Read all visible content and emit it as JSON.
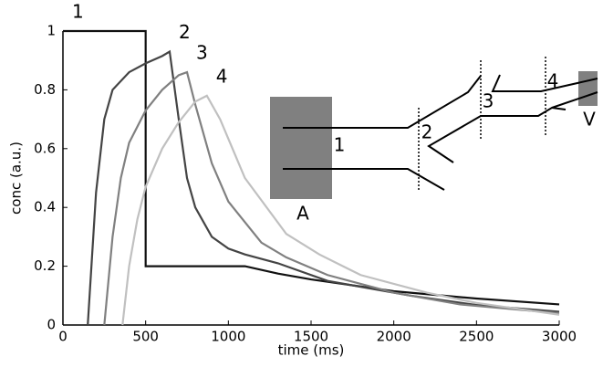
{
  "chart_data": {
    "type": "line",
    "xlabel": "time (ms)",
    "ylabel": "conc (a.u.)",
    "xlim": [
      0,
      3000
    ],
    "ylim": [
      0,
      1
    ],
    "xticks": [
      0,
      500,
      1000,
      1500,
      2000,
      2500,
      3000
    ],
    "yticks": [
      0,
      0.2,
      0.4,
      0.6,
      0.8,
      1
    ],
    "grid": false,
    "series": [
      {
        "name": "1",
        "color": "#111111",
        "x": [
          0,
          500,
          500,
          1100,
          1300,
          1500,
          2000,
          2500,
          3000
        ],
        "values": [
          1,
          1,
          0.2,
          0.2,
          0.175,
          0.155,
          0.115,
          0.09,
          0.07
        ]
      },
      {
        "name": "2",
        "color": "#444444",
        "x": [
          150,
          200,
          250,
          300,
          400,
          500,
          600,
          645,
          700,
          750,
          800,
          900,
          1000,
          1100,
          1300,
          1600,
          2100,
          2500,
          3000
        ],
        "values": [
          0,
          0.45,
          0.7,
          0.8,
          0.86,
          0.89,
          0.915,
          0.93,
          0.7,
          0.5,
          0.4,
          0.3,
          0.26,
          0.24,
          0.21,
          0.15,
          0.1,
          0.068,
          0.045
        ]
      },
      {
        "name": "3",
        "color": "#808080",
        "x": [
          250,
          300,
          350,
          400,
          500,
          600,
          700,
          750,
          800,
          900,
          1000,
          1200,
          1350,
          1600,
          2000,
          2400,
          3000
        ],
        "values": [
          0,
          0.3,
          0.5,
          0.62,
          0.73,
          0.8,
          0.85,
          0.86,
          0.75,
          0.55,
          0.42,
          0.28,
          0.23,
          0.17,
          0.11,
          0.07,
          0.04
        ]
      },
      {
        "name": "4",
        "color": "#c0c0c0",
        "x": [
          360,
          400,
          450,
          500,
          600,
          700,
          800,
          870,
          950,
          1100,
          1350,
          1550,
          1800,
          2200,
          2500,
          3000
        ],
        "values": [
          0,
          0.2,
          0.36,
          0.47,
          0.6,
          0.69,
          0.76,
          0.78,
          0.7,
          0.5,
          0.31,
          0.24,
          0.17,
          0.11,
          0.075,
          0.035
        ]
      }
    ],
    "diagram_labels": [
      "A",
      "1",
      "2",
      "3",
      "4",
      "V"
    ]
  }
}
